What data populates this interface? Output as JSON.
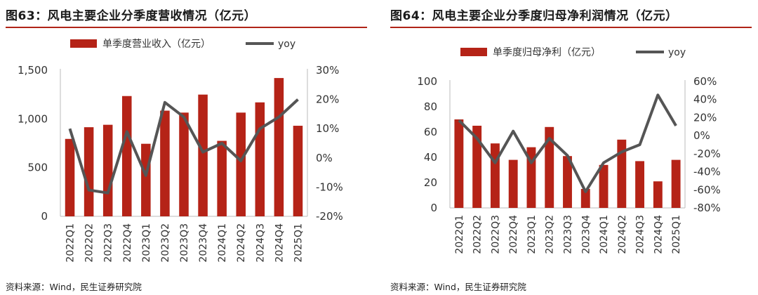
{
  "colors": {
    "bar": "#b52317",
    "line": "#555555",
    "rule": "#b02418"
  },
  "charts": [
    {
      "title": "图63：风电主要企业分季度营收情况（亿元）",
      "source": "资料来源：Wind，民生证券研究院",
      "legend": {
        "bar": "单季度营业收入（亿元）",
        "line": "yoy"
      },
      "left_ticks": [
        "1,500",
        "1,000",
        "500",
        "0"
      ],
      "right_ticks": [
        "30%",
        "20%",
        "10%",
        "0%",
        "-10%",
        "-20%"
      ]
    },
    {
      "title": "图64：风电主要企业分季度归母净利润情况（亿元）",
      "source": "资料来源：Wind，民生证券研究院",
      "legend": {
        "bar": "单季度归母净利（亿元）",
        "line": "yoy"
      },
      "left_ticks": [
        "100",
        "80",
        "60",
        "40",
        "20",
        "0"
      ],
      "right_ticks": [
        "60%",
        "40%",
        "20%",
        "0%",
        "-20%",
        "-40%",
        "-60%",
        "-80%"
      ]
    }
  ],
  "chart_data": [
    {
      "type": "bar",
      "title": "图63：风电主要企业分季度营收情况（亿元）",
      "categories": [
        "2022Q1",
        "2022Q2",
        "2022Q3",
        "2022Q4",
        "2023Q1",
        "2023Q2",
        "2023Q3",
        "2023Q4",
        "2024Q1",
        "2024Q2",
        "2024Q3",
        "2024Q4",
        "2025Q1"
      ],
      "series": [
        {
          "name": "单季度营业收入（亿元）",
          "type": "bar",
          "axis": "left",
          "values": [
            795,
            915,
            940,
            1235,
            745,
            1085,
            1065,
            1250,
            775,
            1065,
            1170,
            1420,
            930
          ]
        },
        {
          "name": "yoy",
          "type": "line",
          "axis": "right",
          "values": [
            10,
            -11,
            -12,
            9,
            -6,
            19,
            14,
            2,
            5,
            -1,
            10,
            14,
            20
          ]
        }
      ],
      "left_ylim": [
        0,
        1500
      ],
      "right_ylim": [
        -20,
        30
      ],
      "legend_position": "top",
      "grid": false
    },
    {
      "type": "bar",
      "title": "图64：风电主要企业分季度归母净利润情况（亿元）",
      "categories": [
        "2022Q1",
        "2022Q2",
        "2022Q3",
        "2022Q4",
        "2023Q1",
        "2023Q2",
        "2023Q3",
        "2023Q4",
        "2024Q1",
        "2024Q2",
        "2024Q3",
        "2024Q4",
        "2025Q1"
      ],
      "series": [
        {
          "name": "单季度归母净利（亿元）",
          "type": "bar",
          "axis": "left",
          "values": [
            70,
            65,
            51,
            38,
            48,
            64,
            41,
            15,
            34,
            54,
            37,
            21,
            38
          ]
        },
        {
          "name": "yoy",
          "type": "line",
          "axis": "right",
          "values": [
            17,
            -3,
            -30,
            5,
            -30,
            -3,
            -22,
            -62,
            -30,
            -18,
            -10,
            45,
            11
          ]
        }
      ],
      "left_ylim": [
        0,
        100
      ],
      "right_ylim": [
        -80,
        60
      ],
      "legend_position": "top",
      "grid": false
    }
  ]
}
